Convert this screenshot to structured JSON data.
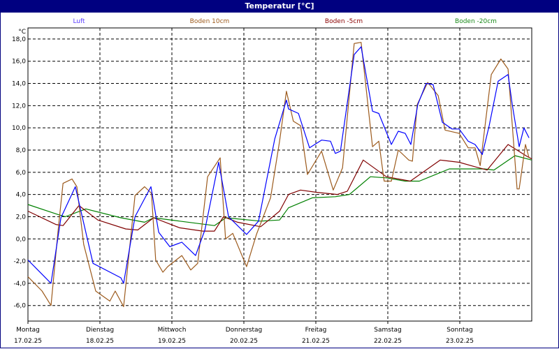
{
  "window": {
    "title": "Temperatur [°C]"
  },
  "chart_data": {
    "type": "line",
    "title": "Temperatur [°C]",
    "ylabel": "°C",
    "xlabel": "",
    "x_unit": "hours since 17.02.25 00:00",
    "xlim": [
      0,
      168
    ],
    "ylim": [
      -7.4,
      19.0
    ],
    "grid": true,
    "legend_placement": "top",
    "yticks": [
      18,
      16,
      14,
      12,
      10,
      8,
      6,
      4,
      2,
      0,
      -2,
      -4,
      -6
    ],
    "ytick_labels": [
      "18,0",
      "16,0",
      "14,0",
      "12,0",
      "10,0",
      "8,0",
      "6,0",
      "4,0",
      "2,0",
      "0,0",
      "-2,0",
      "-4,0",
      "-6,0"
    ],
    "xticks": [
      {
        "x": 0,
        "day": "Montag",
        "date": "17.02.25"
      },
      {
        "x": 24,
        "day": "Dienstag",
        "date": "18.02.25"
      },
      {
        "x": 48,
        "day": "Mittwoch",
        "date": "19.02.25"
      },
      {
        "x": 72,
        "day": "Donnerstag",
        "date": "20.02.25"
      },
      {
        "x": 96,
        "day": "Freitag",
        "date": "21.02.25"
      },
      {
        "x": 120,
        "day": "Samstag",
        "date": "22.02.25"
      },
      {
        "x": 144,
        "day": "Sonntag",
        "date": "23.02.25"
      }
    ],
    "series": [
      {
        "name": "Luft",
        "color": "#0000ff",
        "legend_color": "#5a3cff",
        "points": [
          [
            0,
            -1.9
          ],
          [
            7.7,
            -4.0
          ],
          [
            11,
            1.9
          ],
          [
            15.8,
            4.7
          ],
          [
            21.7,
            -2.2
          ],
          [
            31,
            -3.5
          ],
          [
            31.9,
            -4.0
          ],
          [
            35.7,
            2.0
          ],
          [
            41,
            4.7
          ],
          [
            43.6,
            0.6
          ],
          [
            47.3,
            -0.7
          ],
          [
            51.3,
            -0.3
          ],
          [
            55.9,
            -1.5
          ],
          [
            59,
            0.8
          ],
          [
            63.6,
            6.9
          ],
          [
            66.9,
            2.0
          ],
          [
            72.9,
            0.4
          ],
          [
            76.9,
            1.6
          ],
          [
            82.3,
            9.0
          ],
          [
            86.2,
            12.5
          ],
          [
            86.9,
            11.7
          ],
          [
            90.2,
            11.3
          ],
          [
            93.9,
            8.2
          ],
          [
            97.9,
            8.9
          ],
          [
            100.9,
            8.8
          ],
          [
            102.5,
            7.7
          ],
          [
            104.2,
            7.9
          ],
          [
            108.8,
            16.6
          ],
          [
            111.1,
            17.3
          ],
          [
            114.9,
            11.5
          ],
          [
            117,
            11.3
          ],
          [
            121.2,
            8.5
          ],
          [
            123.5,
            9.7
          ],
          [
            125.8,
            9.5
          ],
          [
            127.7,
            8.5
          ],
          [
            130,
            12.1
          ],
          [
            132.8,
            14.0
          ],
          [
            135.1,
            13.9
          ],
          [
            138.2,
            10.5
          ],
          [
            141.4,
            9.9
          ],
          [
            143.8,
            9.9
          ],
          [
            146.8,
            8.8
          ],
          [
            149.1,
            8.5
          ],
          [
            151.5,
            7.6
          ],
          [
            153.8,
            10.2
          ],
          [
            156.8,
            14.2
          ],
          [
            160.1,
            14.8
          ],
          [
            161.5,
            12.1
          ],
          [
            163.8,
            8.3
          ],
          [
            165.4,
            10.0
          ],
          [
            167.1,
            9.1
          ]
        ]
      },
      {
        "name": "Boden 10cm",
        "color": "#9c5a1c",
        "legend_color": "#9c5a1c",
        "points": [
          [
            0,
            -3.4
          ],
          [
            4.7,
            -4.7
          ],
          [
            7.7,
            -6.0
          ],
          [
            10,
            0.6
          ],
          [
            11.7,
            5.0
          ],
          [
            14.7,
            5.4
          ],
          [
            16.3,
            4.7
          ],
          [
            18.6,
            -0.5
          ],
          [
            22.6,
            -4.7
          ],
          [
            27.3,
            -5.6
          ],
          [
            29.1,
            -4.7
          ],
          [
            31.9,
            -6.1
          ],
          [
            35.7,
            3.9
          ],
          [
            38.9,
            4.7
          ],
          [
            41.2,
            4.1
          ],
          [
            42.6,
            -1.9
          ],
          [
            45,
            -3.0
          ],
          [
            46.6,
            -2.5
          ],
          [
            51.3,
            -1.5
          ],
          [
            54.3,
            -2.8
          ],
          [
            56.6,
            -2.2
          ],
          [
            59.9,
            5.6
          ],
          [
            64.1,
            7.3
          ],
          [
            65.9,
            0.0
          ],
          [
            68.3,
            0.5
          ],
          [
            72.9,
            -2.5
          ],
          [
            76.2,
            0.4
          ],
          [
            80.9,
            3.7
          ],
          [
            83.9,
            8.8
          ],
          [
            86.2,
            13.3
          ],
          [
            88.5,
            10.6
          ],
          [
            90.9,
            10.2
          ],
          [
            93.2,
            5.8
          ],
          [
            97.9,
            7.9
          ],
          [
            101.8,
            4.4
          ],
          [
            104.9,
            6.4
          ],
          [
            108.8,
            17.6
          ],
          [
            111.1,
            17.7
          ],
          [
            114.9,
            8.3
          ],
          [
            117,
            8.8
          ],
          [
            118.8,
            5.2
          ],
          [
            121.2,
            5.2
          ],
          [
            123.5,
            8.0
          ],
          [
            127,
            7.1
          ],
          [
            128.2,
            7.0
          ],
          [
            129.8,
            12.1
          ],
          [
            133.3,
            14.1
          ],
          [
            136.8,
            12.9
          ],
          [
            139.1,
            9.8
          ],
          [
            143.8,
            9.5
          ],
          [
            146.8,
            8.2
          ],
          [
            149.1,
            8.2
          ],
          [
            150.8,
            6.6
          ],
          [
            154.5,
            14.8
          ],
          [
            157.7,
            16.2
          ],
          [
            160.1,
            15.3
          ],
          [
            163.1,
            4.5
          ],
          [
            163.8,
            4.5
          ],
          [
            165.9,
            8.5
          ],
          [
            167.1,
            7.3
          ]
        ]
      },
      {
        "name": "Boden -5cm",
        "color": "#800000",
        "legend_color": "#8b0000",
        "points": [
          [
            0,
            2.5
          ],
          [
            9.3,
            1.3
          ],
          [
            11.7,
            1.2
          ],
          [
            17,
            3.0
          ],
          [
            23.3,
            1.7
          ],
          [
            32.6,
            0.9
          ],
          [
            36.6,
            0.8
          ],
          [
            41.9,
            1.9
          ],
          [
            50.6,
            1.0
          ],
          [
            58.3,
            0.7
          ],
          [
            62.2,
            0.7
          ],
          [
            65.2,
            2.0
          ],
          [
            69.9,
            1.5
          ],
          [
            77.6,
            1.1
          ],
          [
            83.9,
            2.5
          ],
          [
            86.9,
            4.0
          ],
          [
            90.9,
            4.4
          ],
          [
            96.2,
            4.2
          ],
          [
            103.2,
            4.0
          ],
          [
            106.5,
            4.3
          ],
          [
            111.8,
            7.1
          ],
          [
            119.5,
            5.6
          ],
          [
            127.5,
            5.2
          ],
          [
            137.5,
            7.1
          ],
          [
            143.8,
            6.9
          ],
          [
            149.1,
            6.5
          ],
          [
            153.1,
            6.2
          ],
          [
            160.1,
            8.5
          ],
          [
            166.6,
            7.4
          ],
          [
            168,
            7.2
          ]
        ]
      },
      {
        "name": "Boden -20cm",
        "color": "#008000",
        "legend_color": "#1a8a1a",
        "points": [
          [
            0,
            3.1
          ],
          [
            10,
            2.2
          ],
          [
            12.4,
            2.0
          ],
          [
            19.3,
            2.7
          ],
          [
            31,
            1.9
          ],
          [
            38.9,
            1.5
          ],
          [
            41.9,
            1.9
          ],
          [
            50.6,
            1.6
          ],
          [
            62.2,
            1.2
          ],
          [
            66,
            1.9
          ],
          [
            77.6,
            1.6
          ],
          [
            83.9,
            1.7
          ],
          [
            86.9,
            2.8
          ],
          [
            94.8,
            3.7
          ],
          [
            102.5,
            3.8
          ],
          [
            107.2,
            4.0
          ],
          [
            114.2,
            5.6
          ],
          [
            119.5,
            5.5
          ],
          [
            125.8,
            5.2
          ],
          [
            130.5,
            5.2
          ],
          [
            140.5,
            6.3
          ],
          [
            152.2,
            6.3
          ],
          [
            155.4,
            6.2
          ],
          [
            162.4,
            7.5
          ],
          [
            168,
            7.1
          ]
        ]
      }
    ]
  }
}
